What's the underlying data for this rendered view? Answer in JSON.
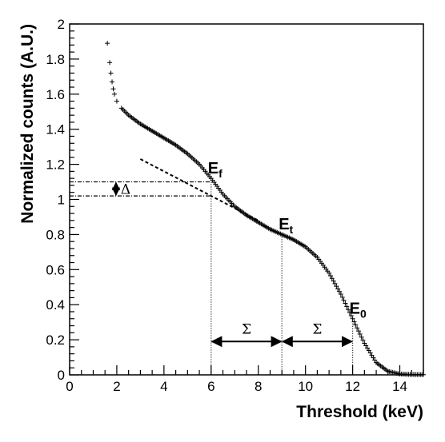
{
  "chart_data": {
    "type": "scatter",
    "xlabel": "Threshold (keV)",
    "ylabel": "Normalized counts (A.U.)",
    "xlim": [
      0,
      15
    ],
    "ylim": [
      0,
      2
    ],
    "x_ticks": [
      "0",
      "2",
      "4",
      "6",
      "8",
      "10",
      "12",
      "14"
    ],
    "y_ticks": [
      "0",
      "0.2",
      "0.4",
      "0.6",
      "0.8",
      "1",
      "1.2",
      "1.4",
      "1.6",
      "1.8",
      "2"
    ],
    "grid": false,
    "legend": "none",
    "marker": "cross",
    "series": [
      {
        "points": [
          [
            1.6,
            1.89
          ],
          [
            1.7,
            1.78
          ],
          [
            1.75,
            1.72
          ],
          [
            1.8,
            1.67
          ],
          [
            1.85,
            1.63
          ],
          [
            1.9,
            1.6
          ],
          [
            2.0,
            1.56
          ],
          [
            2.2,
            1.52
          ],
          [
            2.5,
            1.48
          ],
          [
            3.0,
            1.43
          ],
          [
            3.5,
            1.39
          ],
          [
            4.0,
            1.35
          ],
          [
            4.5,
            1.31
          ],
          [
            5.0,
            1.26
          ],
          [
            5.5,
            1.2
          ],
          [
            6.0,
            1.12
          ],
          [
            6.5,
            1.03
          ],
          [
            7.0,
            0.96
          ],
          [
            7.5,
            0.91
          ],
          [
            8.0,
            0.87
          ],
          [
            8.5,
            0.83
          ],
          [
            9.0,
            0.8
          ],
          [
            9.5,
            0.77
          ],
          [
            10.0,
            0.73
          ],
          [
            10.5,
            0.67
          ],
          [
            11.0,
            0.58
          ],
          [
            11.5,
            0.46
          ],
          [
            12.0,
            0.32
          ],
          [
            12.5,
            0.18
          ],
          [
            13.0,
            0.07
          ],
          [
            13.5,
            0.02
          ],
          [
            14.0,
            0.005
          ],
          [
            14.5,
            0.002
          ],
          [
            15.0,
            0.001
          ]
        ]
      }
    ],
    "fit_line": {
      "x": [
        3.0,
        8.0
      ],
      "y": [
        1.23,
        0.88
      ],
      "style": "dashed"
    },
    "horizontal_refs": [
      {
        "y": 1.1,
        "x_end": 6.0
      },
      {
        "y": 1.02,
        "x_end": 6.0
      }
    ],
    "vertical_refs": [
      {
        "x": 6.0,
        "y_top": 1.1
      },
      {
        "x": 9.0,
        "y_top": 0.8
      },
      {
        "x": 12.0,
        "y_top": 0.32
      }
    ],
    "annotations": [
      {
        "base": "E",
        "sub": "f",
        "x": 6.0,
        "y": 1.13
      },
      {
        "base": "E",
        "sub": "t",
        "x": 9.0,
        "y": 0.81
      },
      {
        "base": "E",
        "sub": "0",
        "x": 12.0,
        "y": 0.33
      }
    ],
    "delta": {
      "label": "Δ",
      "x": 2.0,
      "y_top": 1.1,
      "y_bottom": 1.02
    },
    "sigma_arrows": [
      {
        "label": "Σ",
        "x_start": 6.0,
        "x_end": 9.0,
        "y": 0.19
      },
      {
        "label": "Σ",
        "x_start": 9.0,
        "x_end": 12.0,
        "y": 0.19
      }
    ]
  }
}
